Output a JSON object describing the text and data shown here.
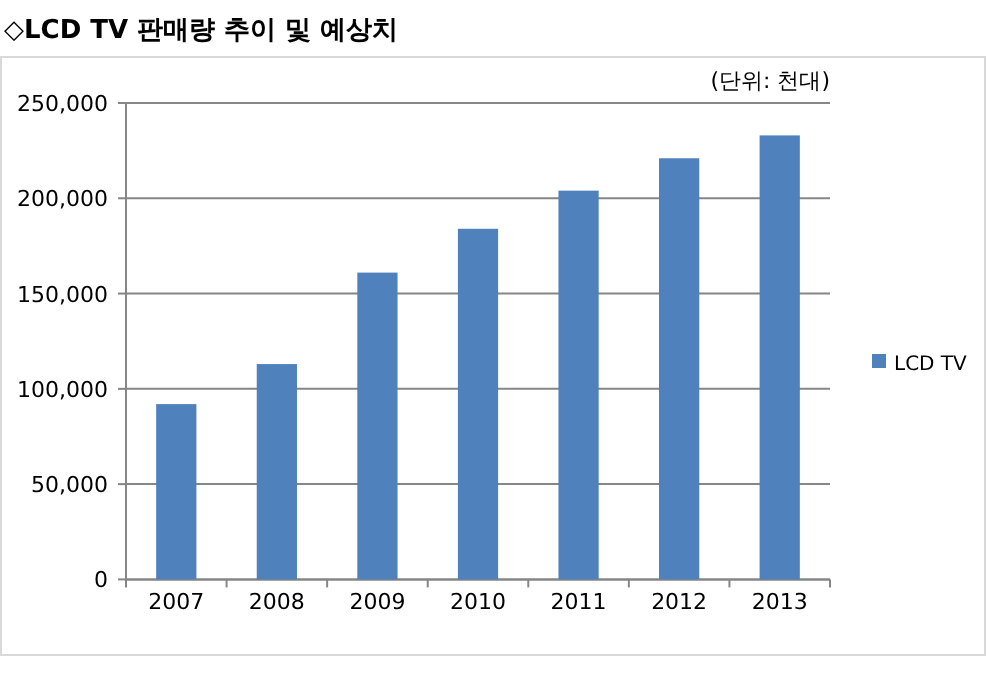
{
  "chart_data": {
    "type": "bar",
    "title": "◇LCD TV 판매량 추이 및 예상치",
    "annotations": [
      "(단위: 천대)"
    ],
    "categories": [
      "2007",
      "2008",
      "2009",
      "2010",
      "2011",
      "2012",
      "2013"
    ],
    "series": [
      {
        "name": "LCD TV",
        "color": "#4f81bd",
        "values": [
          92000,
          113000,
          161000,
          184000,
          204000,
          221000,
          233000
        ]
      }
    ],
    "ylim": [
      0,
      250000
    ],
    "yticks": [
      {
        "value": 0,
        "label": "0"
      },
      {
        "value": 50000,
        "label": "50,000"
      },
      {
        "value": 100000,
        "label": "100,000"
      },
      {
        "value": 150000,
        "label": "150,000"
      },
      {
        "value": 200000,
        "label": "200,000"
      },
      {
        "value": 250000,
        "label": "250,000"
      }
    ],
    "grid": "y",
    "legend": "right"
  }
}
